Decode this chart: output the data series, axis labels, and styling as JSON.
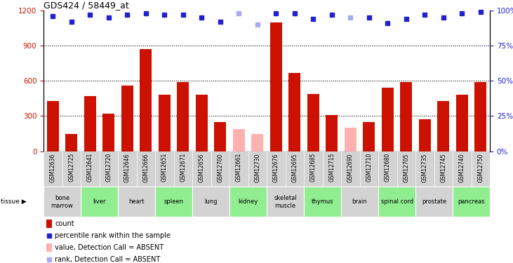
{
  "title": "GDS424 / 58449_at",
  "samples": [
    "GSM12636",
    "GSM12725",
    "GSM12641",
    "GSM12720",
    "GSM12646",
    "GSM12666",
    "GSM12651",
    "GSM12671",
    "GSM12656",
    "GSM12700",
    "GSM12661",
    "GSM12730",
    "GSM12676",
    "GSM12695",
    "GSM12685",
    "GSM12715",
    "GSM12690",
    "GSM12710",
    "GSM12680",
    "GSM12705",
    "GSM12735",
    "GSM12745",
    "GSM12740",
    "GSM12750"
  ],
  "bar_values": [
    430,
    150,
    470,
    320,
    560,
    870,
    480,
    590,
    480,
    250,
    190,
    150,
    1100,
    670,
    490,
    310,
    200,
    250,
    540,
    590,
    270,
    430,
    480,
    590
  ],
  "bar_absent": [
    false,
    false,
    false,
    false,
    false,
    false,
    false,
    false,
    false,
    false,
    true,
    true,
    false,
    false,
    false,
    false,
    true,
    false,
    false,
    false,
    false,
    false,
    false,
    false
  ],
  "rank_values": [
    96,
    92,
    97,
    95,
    97,
    98,
    97,
    97,
    95,
    92,
    98,
    90,
    98,
    98,
    94,
    97,
    95,
    95,
    91,
    94,
    97,
    95,
    98,
    99
  ],
  "rank_absent": [
    false,
    false,
    false,
    false,
    false,
    false,
    false,
    false,
    false,
    false,
    true,
    true,
    false,
    false,
    false,
    false,
    true,
    false,
    false,
    false,
    false,
    false,
    false,
    false
  ],
  "tissues": [
    {
      "name": "bone\nmarrow",
      "span": 2,
      "color": "#d3d3d3"
    },
    {
      "name": "liver",
      "span": 2,
      "color": "#90ee90"
    },
    {
      "name": "heart",
      "span": 2,
      "color": "#d3d3d3"
    },
    {
      "name": "spleen",
      "span": 2,
      "color": "#90ee90"
    },
    {
      "name": "lung",
      "span": 2,
      "color": "#d3d3d3"
    },
    {
      "name": "kidney",
      "span": 2,
      "color": "#90ee90"
    },
    {
      "name": "skeletal\nmuscle",
      "span": 2,
      "color": "#d3d3d3"
    },
    {
      "name": "thymus",
      "span": 2,
      "color": "#90ee90"
    },
    {
      "name": "brain",
      "span": 2,
      "color": "#d3d3d3"
    },
    {
      "name": "spinal cord",
      "span": 2,
      "color": "#90ee90"
    },
    {
      "name": "prostate",
      "span": 2,
      "color": "#d3d3d3"
    },
    {
      "name": "pancreas",
      "span": 2,
      "color": "#90ee90"
    }
  ],
  "ylim_left": [
    0,
    1200
  ],
  "ylim_right": [
    0,
    100
  ],
  "yticks_left": [
    0,
    300,
    600,
    900,
    1200
  ],
  "yticks_right": [
    0,
    25,
    50,
    75,
    100
  ],
  "grid_lines": [
    300,
    600,
    900
  ],
  "bar_color": "#cc1100",
  "bar_absent_color": "#ffb0b0",
  "rank_color": "#2222cc",
  "rank_absent_color": "#aaaaee",
  "bg_color": "#ffffff",
  "sample_strip_color": "#d3d3d3",
  "legend_items": [
    {
      "label": "count",
      "color": "#cc1100",
      "type": "bar"
    },
    {
      "label": "percentile rank within the sample",
      "color": "#2222cc",
      "type": "square"
    },
    {
      "label": "value, Detection Call = ABSENT",
      "color": "#ffb0b0",
      "type": "bar"
    },
    {
      "label": "rank, Detection Call = ABSENT",
      "color": "#aaaaee",
      "type": "square"
    }
  ]
}
